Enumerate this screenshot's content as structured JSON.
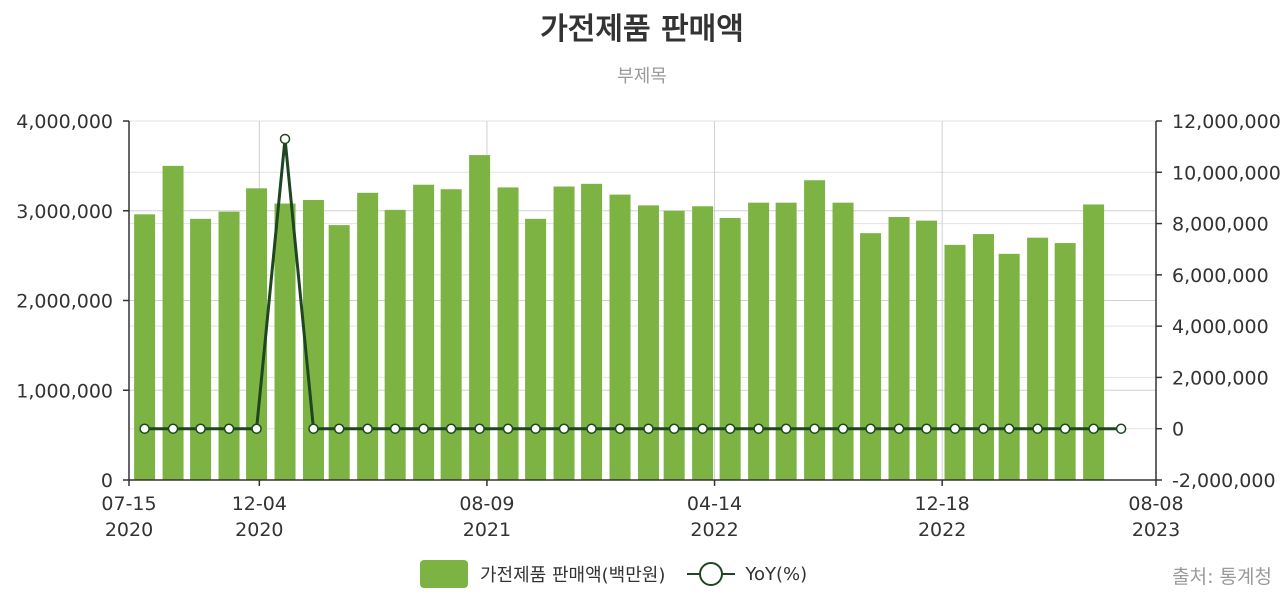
{
  "chart_data": {
    "type": "bar",
    "title": "가전제품 판매액",
    "subtitle": "부제목",
    "source": "출처: 통계청",
    "colors": {
      "bar": "#7cb342",
      "line": "#1e4620"
    },
    "grid": true,
    "legend_position": "bottom-center",
    "x_ticks": [
      {
        "date": "2020-07-15",
        "top": "07-15",
        "bottom": "2020"
      },
      {
        "date": "2020-12-04",
        "top": "12-04",
        "bottom": "2020"
      },
      {
        "date": "2021-08-09",
        "top": "08-09",
        "bottom": "2021"
      },
      {
        "date": "2022-04-14",
        "top": "04-14",
        "bottom": "2022"
      },
      {
        "date": "2022-12-18",
        "top": "12-18",
        "bottom": "2022"
      },
      {
        "date": "2023-08-08",
        "top": "08-08",
        "bottom": "2023"
      }
    ],
    "x_range": [
      "2020-07-15",
      "2023-08-08"
    ],
    "y_left": {
      "ylim": [
        0,
        4000000
      ],
      "ticks": [
        "0",
        "1,000,000",
        "2,000,000",
        "3,000,000",
        "4,000,000"
      ]
    },
    "y_right": {
      "ylim": [
        -2000000,
        12000000
      ],
      "ticks": [
        "-2,000,000",
        "0",
        "2,000,000",
        "4,000,000",
        "6,000,000",
        "8,000,000",
        "10,000,000",
        "12,000,000"
      ]
    },
    "series": [
      {
        "name": "가전제품 판매액(백만원)",
        "type": "bar",
        "axis": "left",
        "x": [
          "2020-08-01",
          "2020-09-01",
          "2020-10-01",
          "2020-11-01",
          "2020-12-01",
          "2021-01-01",
          "2021-02-01",
          "2021-03-01",
          "2021-04-01",
          "2021-05-01",
          "2021-06-01",
          "2021-07-01",
          "2021-08-01",
          "2021-09-01",
          "2021-10-01",
          "2021-11-01",
          "2021-12-01",
          "2022-01-01",
          "2022-02-01",
          "2022-03-01",
          "2022-04-01",
          "2022-05-01",
          "2022-06-01",
          "2022-07-01",
          "2022-08-01",
          "2022-09-01",
          "2022-10-01",
          "2022-11-01",
          "2022-12-01",
          "2023-01-01",
          "2023-02-01",
          "2023-03-01",
          "2023-04-01",
          "2023-05-01",
          "2023-06-01",
          "2023-07-01"
        ],
        "values": [
          2960000,
          3500000,
          2910000,
          2990000,
          3250000,
          3080000,
          3120000,
          2840000,
          3200000,
          3010000,
          3290000,
          3240000,
          3620000,
          3260000,
          2910000,
          3270000,
          3300000,
          3180000,
          3060000,
          3000000,
          3050000,
          2920000,
          3090000,
          3090000,
          3340000,
          3090000,
          2750000,
          2930000,
          2890000,
          2620000,
          2740000,
          2520000,
          2700000,
          2640000,
          3070000,
          null
        ]
      },
      {
        "name": "YoY(%)",
        "type": "line",
        "axis": "right",
        "x": [
          "2020-08-01",
          "2020-09-01",
          "2020-10-01",
          "2020-11-01",
          "2020-12-01",
          "2021-01-01",
          "2021-02-01",
          "2021-03-01",
          "2021-04-01",
          "2021-05-01",
          "2021-06-01",
          "2021-07-01",
          "2021-08-01",
          "2021-09-01",
          "2021-10-01",
          "2021-11-01",
          "2021-12-01",
          "2022-01-01",
          "2022-02-01",
          "2022-03-01",
          "2022-04-01",
          "2022-05-01",
          "2022-06-01",
          "2022-07-01",
          "2022-08-01",
          "2022-09-01",
          "2022-10-01",
          "2022-11-01",
          "2022-12-01",
          "2023-01-01",
          "2023-02-01",
          "2023-03-01",
          "2023-04-01",
          "2023-05-01",
          "2023-06-01",
          "2023-07-01"
        ],
        "values": [
          0,
          0,
          0,
          0,
          0,
          11300000,
          0,
          0,
          0,
          0,
          0,
          0,
          0,
          0,
          0,
          0,
          0,
          0,
          0,
          0,
          0,
          0,
          0,
          0,
          0,
          0,
          0,
          0,
          0,
          0,
          0,
          0,
          0,
          0,
          0,
          0
        ]
      }
    ]
  }
}
